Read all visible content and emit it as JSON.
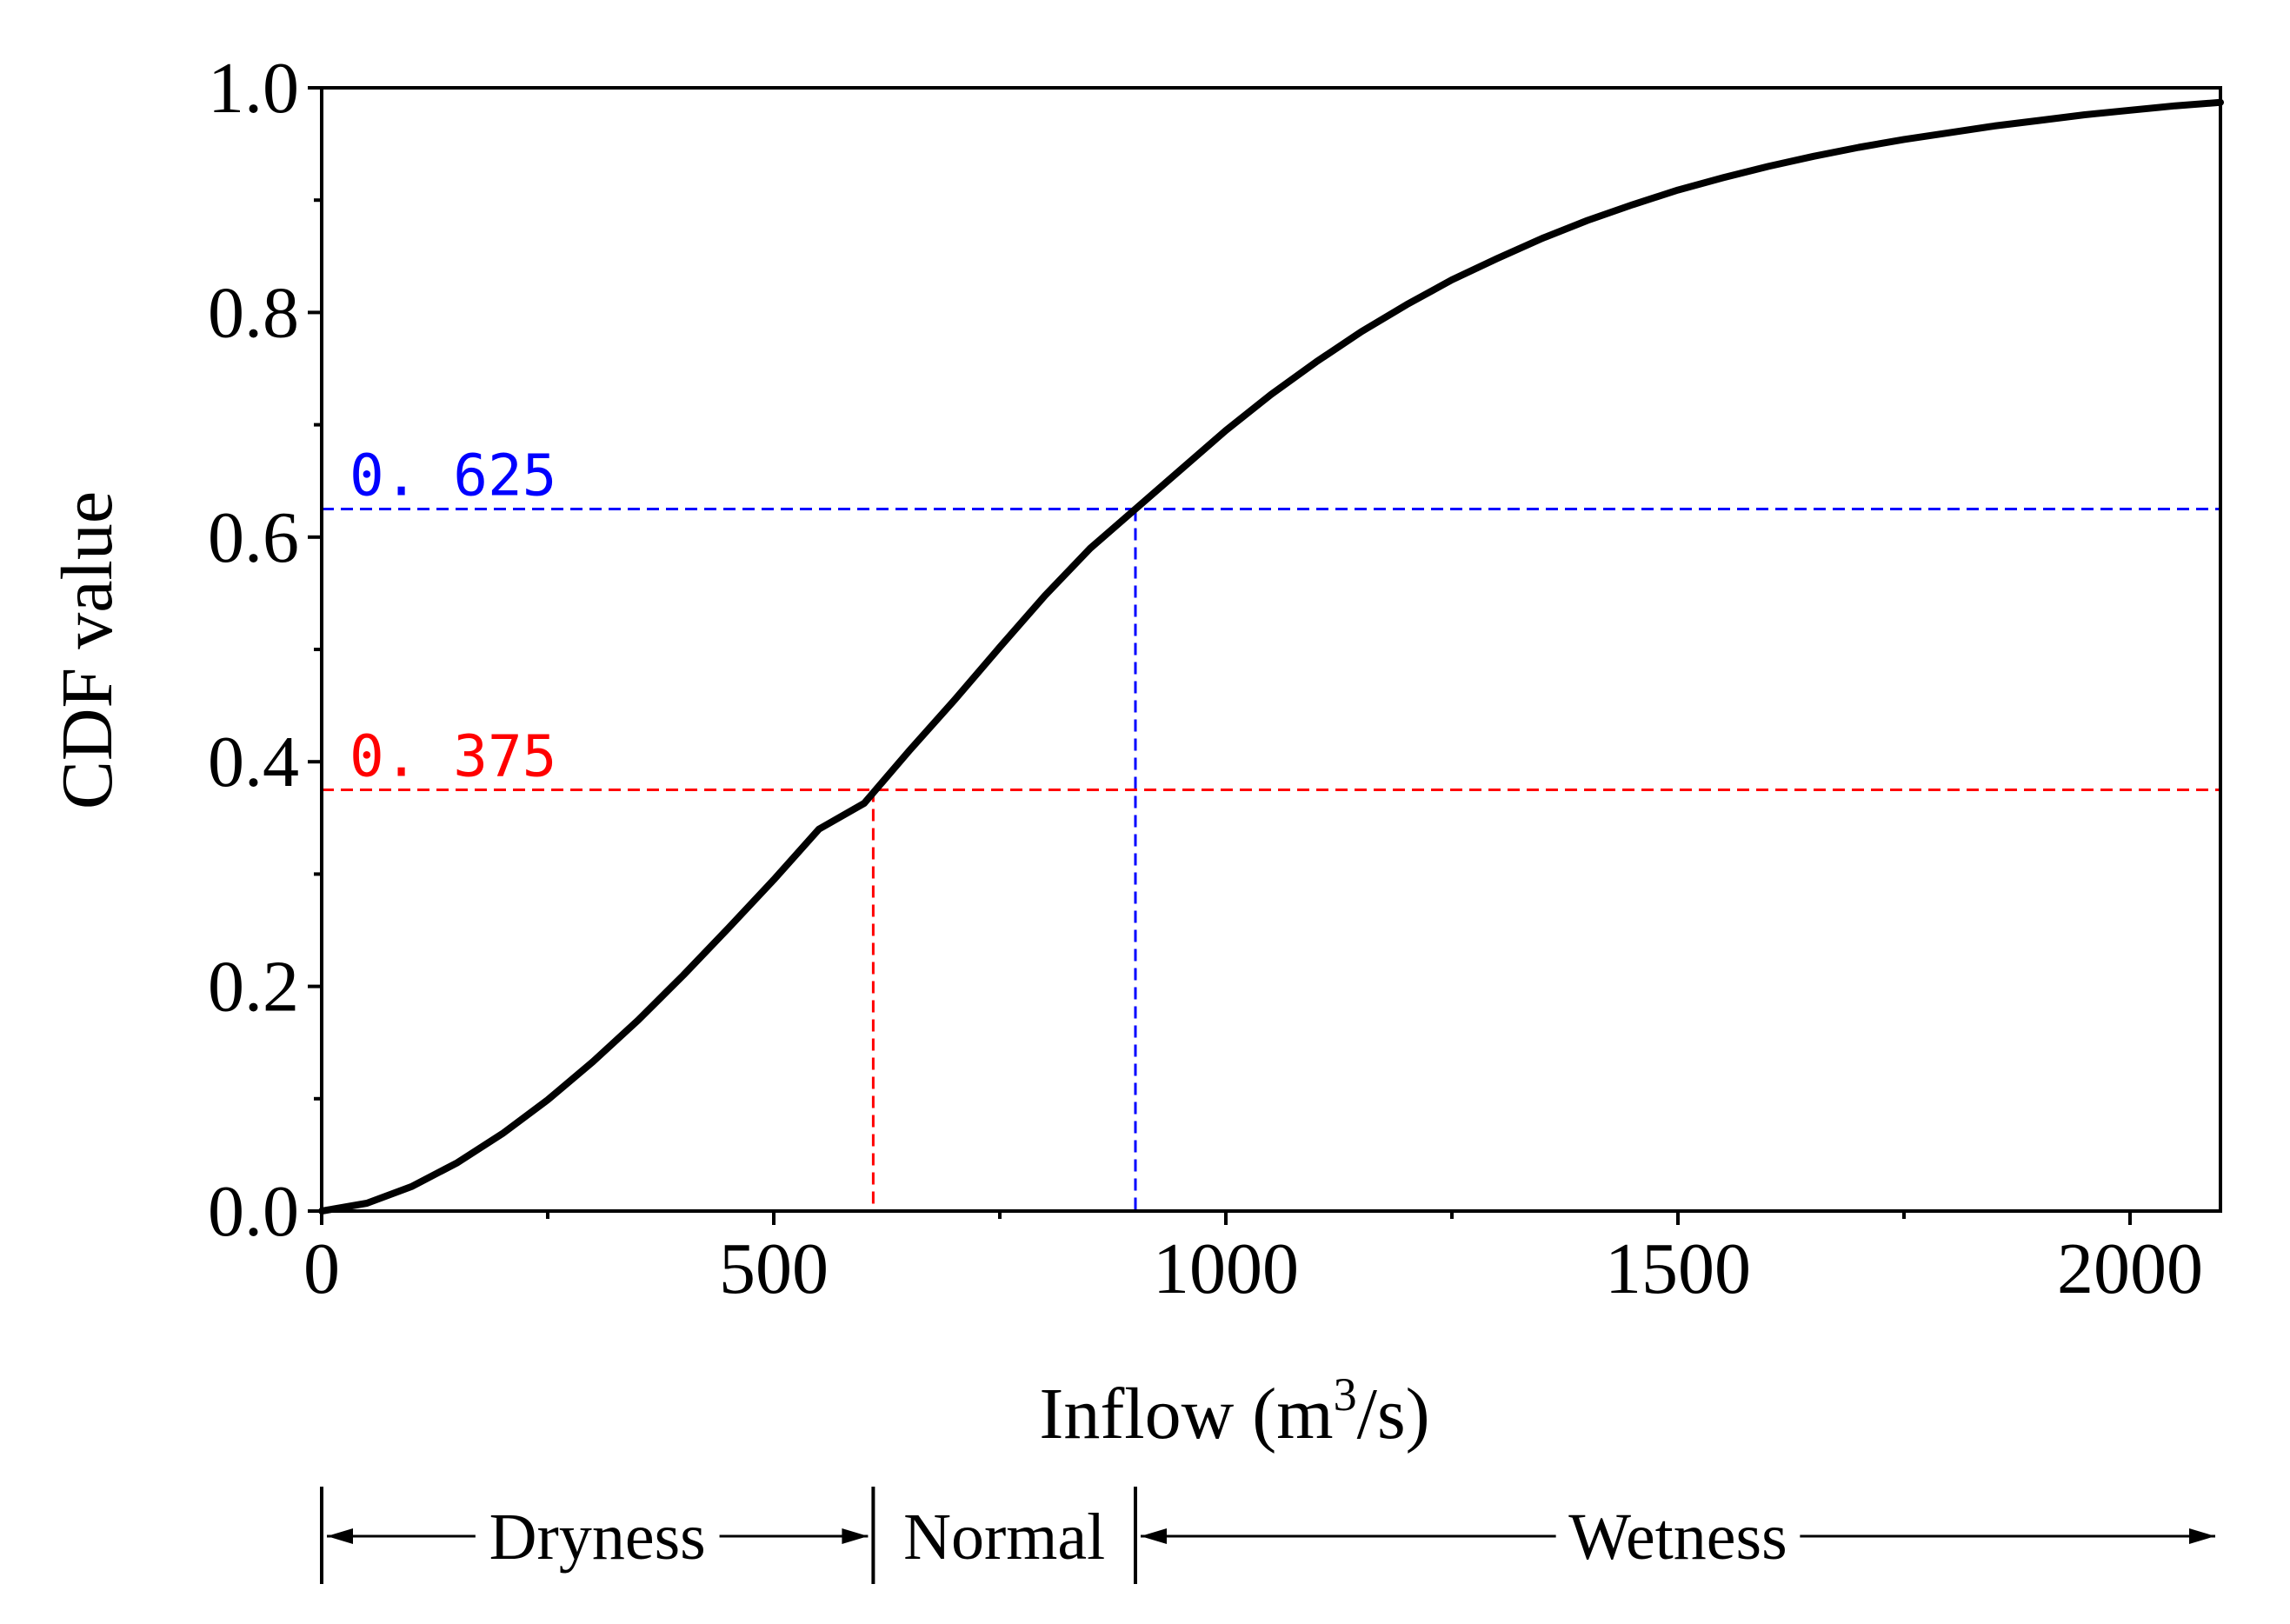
{
  "chart_data": {
    "type": "line",
    "title": "",
    "xlabel_main": "Inflow (m",
    "xlabel_sup": "3",
    "xlabel_tail": "/s)",
    "ylabel": "CDF value",
    "xlim": [
      0,
      2100
    ],
    "ylim": [
      0,
      1.0
    ],
    "xticks": [
      0,
      500,
      1000,
      1500,
      2000
    ],
    "xtick_labels": [
      "0",
      "500",
      "1000",
      "1500",
      "2000"
    ],
    "x_minor_ticks": [
      250,
      750,
      1250,
      1750
    ],
    "yticks": [
      0.0,
      0.2,
      0.4,
      0.6,
      0.8,
      1.0
    ],
    "ytick_labels": [
      "0.0",
      "0.2",
      "0.4",
      "0.6",
      "0.8",
      "1.0"
    ],
    "y_minor_ticks": [
      0.1,
      0.3,
      0.5,
      0.7,
      0.9
    ],
    "grid": false,
    "series": [
      {
        "name": "CDF",
        "color": "#000000",
        "x": [
          0,
          50,
          100,
          150,
          200,
          250,
          300,
          350,
          400,
          450,
          500,
          550,
          600,
          650,
          700,
          750,
          800,
          850,
          900,
          950,
          1000,
          1050,
          1100,
          1150,
          1200,
          1250,
          1300,
          1350,
          1400,
          1450,
          1500,
          1550,
          1600,
          1650,
          1700,
          1750,
          1800,
          1850,
          1900,
          1950,
          2000,
          2050,
          2100
        ],
        "y": [
          0.0,
          0.007,
          0.022,
          0.043,
          0.069,
          0.099,
          0.133,
          0.17,
          0.21,
          0.252,
          0.295,
          0.34,
          0.363,
          0.41,
          0.455,
          0.502,
          0.548,
          0.59,
          0.625,
          0.66,
          0.695,
          0.727,
          0.756,
          0.783,
          0.807,
          0.829,
          0.848,
          0.866,
          0.882,
          0.896,
          0.909,
          0.92,
          0.93,
          0.939,
          0.947,
          0.954,
          0.96,
          0.966,
          0.971,
          0.976,
          0.98,
          0.984,
          0.987
        ]
      }
    ],
    "reference_lines": [
      {
        "label": "0. 625",
        "y": 0.625,
        "x": 900,
        "color": "#0000ff"
      },
      {
        "label": "0. 375",
        "y": 0.375,
        "x": 610,
        "color": "#ff0000"
      }
    ],
    "regions": [
      {
        "label": "Dryness",
        "x_from": 0,
        "x_to": 610
      },
      {
        "label": "Normal",
        "x_from": 610,
        "x_to": 900
      },
      {
        "label": "Wetness",
        "x_from": 900,
        "x_to": 2100
      }
    ]
  }
}
